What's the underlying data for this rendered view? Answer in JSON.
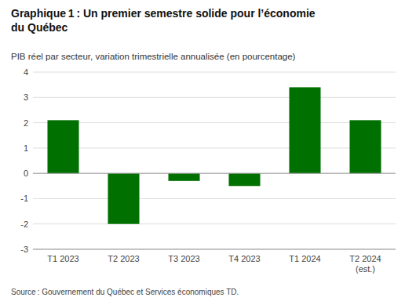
{
  "chart_data": {
    "type": "bar",
    "title": "Graphique 1 : Un premier semestre solide pour l’économie\ndu Québec",
    "subtitle": "PIB réel par secteur, variation trimestrielle annualisée (en pourcentage)",
    "source": "Source : Gouvernement du Québec et Services économiques TD.",
    "categories": [
      "T1 2023",
      "T2 2023",
      "T3 2023",
      "T4 2023",
      "T1 2024",
      "T2 2024\n(est.)"
    ],
    "values": [
      2.1,
      -2.0,
      -0.3,
      -0.5,
      3.4,
      2.1
    ],
    "color": "#007000",
    "ylim": [
      -3,
      4
    ],
    "yticks": [
      -3,
      -2,
      -1,
      0,
      1,
      2,
      3,
      4
    ],
    "grid": true
  }
}
